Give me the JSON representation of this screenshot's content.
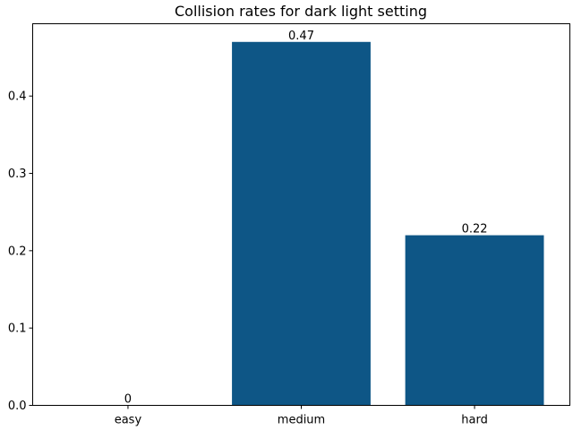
{
  "chart_data": {
    "type": "bar",
    "title": "Collision rates for dark light setting",
    "categories": [
      "easy",
      "medium",
      "hard"
    ],
    "values": [
      0,
      0.47,
      0.22
    ],
    "data_labels": [
      "0",
      "0.47",
      "0.22"
    ],
    "xlabel": "",
    "ylabel": "",
    "ylim": [
      0,
      0.4935
    ],
    "yticks": [
      0.0,
      0.1,
      0.2,
      0.3,
      0.4
    ],
    "ytick_labels": [
      "0.0",
      "0.1",
      "0.2",
      "0.3",
      "0.4"
    ],
    "grid": false,
    "legend": "none",
    "bar_color": "#0e5686"
  }
}
